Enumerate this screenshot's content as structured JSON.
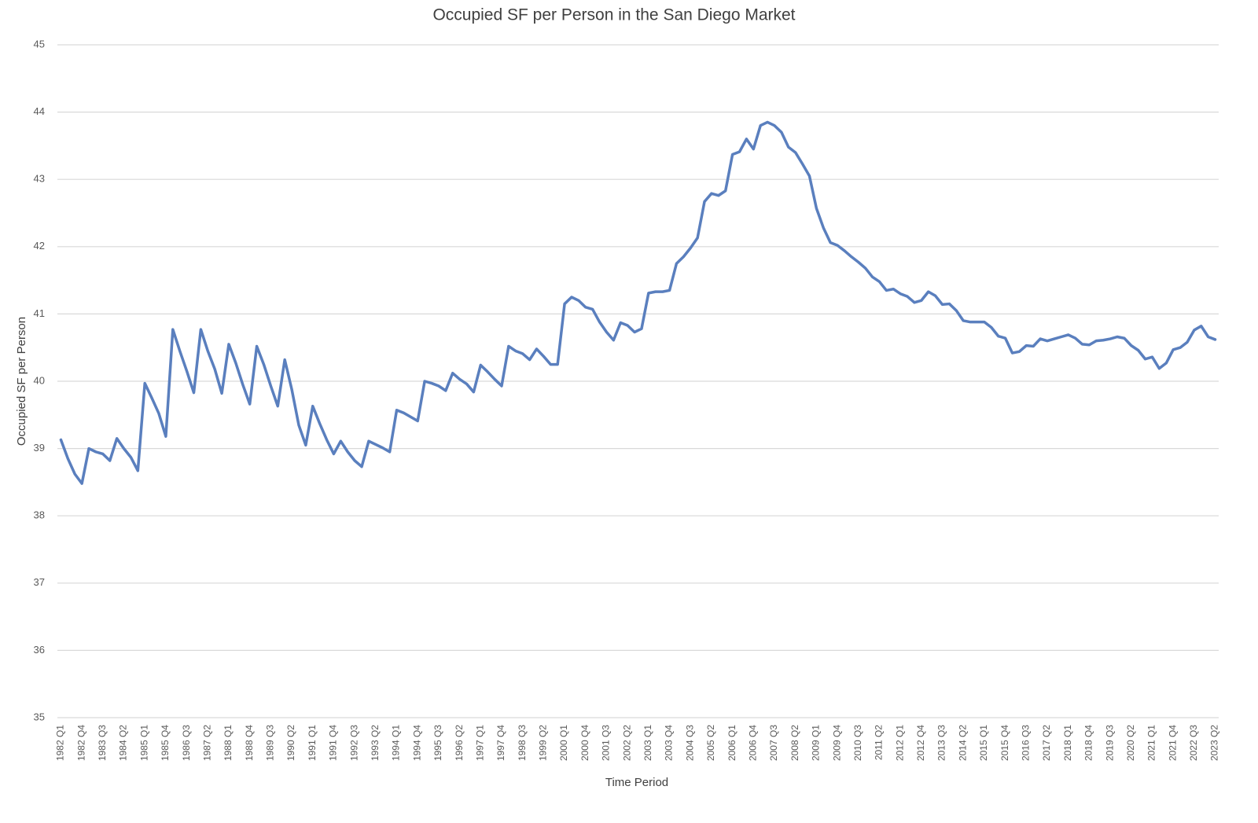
{
  "chart_data": {
    "type": "line",
    "title": "Occupied SF per Person in the San Diego Market",
    "x_label": "Time Period",
    "y_label": "Occupied SF per Person",
    "categories": [
      "1982 Q1",
      null,
      null,
      "1982 Q4",
      null,
      null,
      "1983 Q3",
      null,
      null,
      "1984 Q2",
      null,
      null,
      "1985 Q1",
      null,
      null,
      "1985 Q4",
      null,
      null,
      "1986 Q3",
      null,
      null,
      "1987 Q2",
      null,
      null,
      "1988 Q1",
      null,
      null,
      "1988 Q4",
      null,
      null,
      "1989 Q3",
      null,
      null,
      "1990 Q2",
      null,
      null,
      "1991 Q1",
      null,
      null,
      "1991 Q4",
      null,
      null,
      "1992 Q3",
      null,
      null,
      "1993 Q2",
      null,
      null,
      "1994 Q1",
      null,
      null,
      "1994 Q4",
      null,
      null,
      "1995 Q3",
      null,
      null,
      "1996 Q2",
      null,
      null,
      "1997 Q1",
      null,
      null,
      "1997 Q4",
      null,
      null,
      "1998 Q3",
      null,
      null,
      "1999 Q2",
      null,
      null,
      "2000 Q1",
      null,
      null,
      "2000 Q4",
      null,
      null,
      "2001 Q3",
      null,
      null,
      "2002 Q2",
      null,
      null,
      "2003 Q1",
      null,
      null,
      "2003 Q4",
      null,
      null,
      "2004 Q3",
      null,
      null,
      "2005 Q2",
      null,
      null,
      "2006 Q1",
      null,
      null,
      "2006 Q4",
      null,
      null,
      "2007 Q3",
      null,
      null,
      "2008 Q2",
      null,
      null,
      "2009 Q1",
      null,
      null,
      "2009 Q4",
      null,
      null,
      "2010 Q3",
      null,
      null,
      "2011 Q2",
      null,
      null,
      "2012 Q1",
      null,
      null,
      "2012 Q4",
      null,
      null,
      "2013 Q3",
      null,
      null,
      "2014 Q2",
      null,
      null,
      "2015 Q1",
      null,
      null,
      "2015 Q4",
      null,
      null,
      "2016 Q3",
      null,
      null,
      "2017 Q2",
      null,
      null,
      "2018 Q1",
      null,
      null,
      "2018 Q4",
      null,
      null,
      "2019 Q3",
      null,
      null,
      "2020 Q2",
      null,
      null,
      "2021 Q1",
      null,
      null,
      "2021 Q4",
      null,
      null,
      "2022 Q3",
      null,
      null,
      "2023 Q2"
    ],
    "values": [
      39.13,
      38.85,
      38.62,
      38.48,
      39.0,
      38.95,
      38.92,
      38.82,
      39.15,
      39.0,
      38.87,
      38.67,
      39.97,
      39.75,
      39.52,
      39.18,
      40.77,
      40.45,
      40.15,
      39.83,
      40.77,
      40.45,
      40.18,
      39.82,
      40.55,
      40.27,
      39.95,
      39.66,
      40.52,
      40.25,
      39.93,
      39.63,
      40.32,
      39.88,
      39.35,
      39.05,
      39.63,
      39.37,
      39.13,
      38.92,
      39.11,
      38.95,
      38.82,
      38.73,
      39.11,
      39.06,
      39.01,
      38.95,
      39.57,
      39.53,
      39.47,
      39.41,
      40.0,
      39.97,
      39.93,
      39.86,
      40.12,
      40.03,
      39.96,
      39.84,
      40.24,
      40.14,
      40.03,
      39.93,
      40.52,
      40.45,
      40.41,
      40.32,
      40.48,
      40.37,
      40.25,
      40.25,
      41.15,
      41.25,
      41.2,
      41.1,
      41.07,
      40.88,
      40.73,
      40.61,
      40.87,
      40.83,
      40.73,
      40.78,
      41.31,
      41.33,
      41.33,
      41.35,
      41.75,
      41.85,
      41.98,
      42.13,
      42.67,
      42.79,
      42.76,
      42.83,
      43.37,
      43.41,
      43.6,
      43.45,
      43.8,
      43.85,
      43.8,
      43.7,
      43.48,
      43.4,
      43.23,
      43.05,
      42.57,
      42.28,
      42.06,
      42.02,
      41.94,
      41.85,
      41.77,
      41.68,
      41.55,
      41.48,
      41.35,
      41.37,
      41.3,
      41.26,
      41.17,
      41.2,
      41.33,
      41.27,
      41.14,
      41.15,
      41.05,
      40.9,
      40.88,
      40.88,
      40.88,
      40.8,
      40.67,
      40.64,
      40.42,
      40.44,
      40.53,
      40.52,
      40.63,
      40.6,
      40.63,
      40.66,
      40.69,
      40.64,
      40.55,
      40.54,
      40.6,
      40.61,
      40.63,
      40.66,
      40.64,
      40.53,
      40.46,
      40.33,
      40.36,
      40.19,
      40.27,
      40.47,
      40.5,
      40.58,
      40.76,
      40.82,
      40.66,
      40.62
    ],
    "color": "#5a7fbe",
    "ylim": [
      35,
      45
    ],
    "yticks": [
      35,
      36,
      37,
      38,
      39,
      40,
      41,
      42,
      43,
      44,
      45
    ],
    "grid": true
  }
}
